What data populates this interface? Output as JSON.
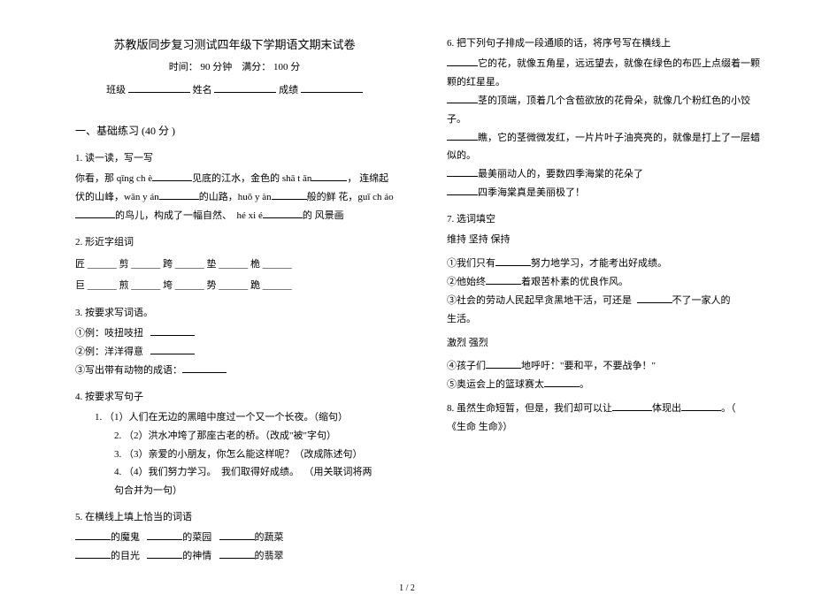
{
  "title": "苏教版同步复习测试四年级下学期语文期末试卷",
  "meta_time_label": "时间：",
  "meta_time_value": "90 分钟",
  "meta_full_label": "满分：",
  "meta_full_value": "100 分",
  "info_class": "班级",
  "info_name": "姓名",
  "info_score": "成绩",
  "section1": "一、基础练习 (40 分 )",
  "q1": "1. 读一读，写一写",
  "q1p1": "你看，那 qīng ch è",
  "q1p2": "见底的江水，金色的 shā t ān",
  "q1p3": "，",
  "q1p4": "连绵起伏的山峰，wān y án",
  "q1p5": "的山路，huǒ y àn",
  "q1p6": "般的鲜",
  "q1p7": "花，guī ch áo",
  "q1p8": "的鸟儿，构成了一幅自然、",
  "q1p9": "hé xi é",
  "q1p10": "的",
  "q1p11": "风景画",
  "q2": "2. 形近字组词",
  "q2r1": "匠 ______  剪 ______  跨 ______  垫 ______  桅 ______",
  "q2r2": "巨 ______  煎 ______  垮 ______  势 ______  跪 ______",
  "q3": "3. 按要求写词语。",
  "q3a": "①例：吱扭吱扭",
  "q3b": "②例：洋洋得意",
  "q3c": "③写出带有动物的成语：",
  "q4": "4. 按要求写句子",
  "q4a": "1. （1）人们在无边的黑暗中度过一个又一个长夜。（缩句）",
  "q4b": "2. （2）洪水冲垮了那座古老的桥。（改成\"被\"字句）",
  "q4c": "3. （3）亲爱的小朋友，你怎么能这样呢？（改成陈述句）",
  "q4d_a": "4. （4）我们努力学习。",
  "q4d_b": "我们取得好成绩。",
  "q4d_c": "（用关联词将两",
  "q4d_d": "句合并为一句）",
  "q5": "5. 在横线上填上恰当的词语",
  "q5a1": "的魔鬼",
  "q5a2": "的菜园",
  "q5a3": "的蔬菜",
  "q5b1": "的目光",
  "q5b2": "的神情",
  "q5b3": "的翡翠",
  "q6": "6. 把下列句子排成一段通顺的话，将序号写在横线上",
  "q6a": "它的花，就像五角星，远远望去，就像在绿色的布匹上点缀着一颗颗的红星星。",
  "q6b": "茎的顶端，顶着几个含苞欲放的花骨朵，就像几个粉红色的小饺子。",
  "q6c": "瞧，它的茎微微发红，一片片叶子油亮亮的，就像是打上了一层蜡似的。",
  "q6d": "最美丽动人的，要数四季海棠的花朵了",
  "q6e": "四季海棠真是美丽极了！",
  "q7": "7. 选词填空",
  "q7w": "维持        坚持        保持",
  "q7a": "①我们只有",
  "q7a2": "努力地学习，才能考出好成绩。",
  "q7b": "②他始终",
  "q7b2": "着艰苦朴素的优良作风。",
  "q7c": "③社会的劳动人民起早贪黑地干活，可还是",
  "q7c2": "不了一家人的",
  "q7c3": "生活。",
  "q7w2": "激烈        强烈",
  "q7d": "④孩子们",
  "q7d2": "地呼吁：\"要和平，不要战争！\"",
  "q7e": "⑤奥运会上的篮球赛太",
  "q7e2": "。",
  "q8a": "8. 虽然生命短暂，但是，我们却可以让",
  "q8b": "体现出",
  "q8c": "。（",
  "q8d": "《生命 生命》）",
  "footer": "1 / 2"
}
